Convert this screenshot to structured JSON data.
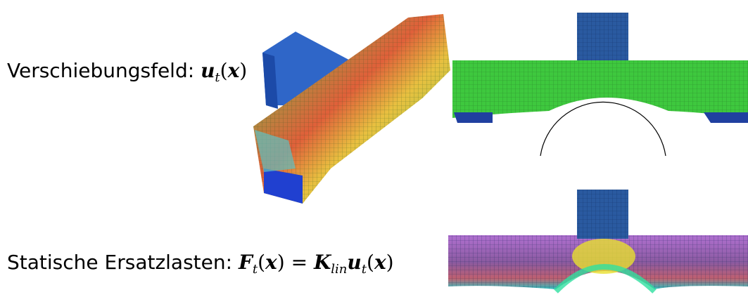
{
  "rows": [
    {
      "label": "Verschiebungsfeld:",
      "formula": [
        "u",
        "t",
        "(",
        "x",
        ")"
      ]
    },
    {
      "label": "Statische Ersatzlasten:",
      "formula": [
        "F",
        "t",
        "(",
        "x",
        ")",
        "=",
        "K",
        "lin",
        "u",
        "t",
        "(",
        "x",
        ")"
      ]
    }
  ]
}
